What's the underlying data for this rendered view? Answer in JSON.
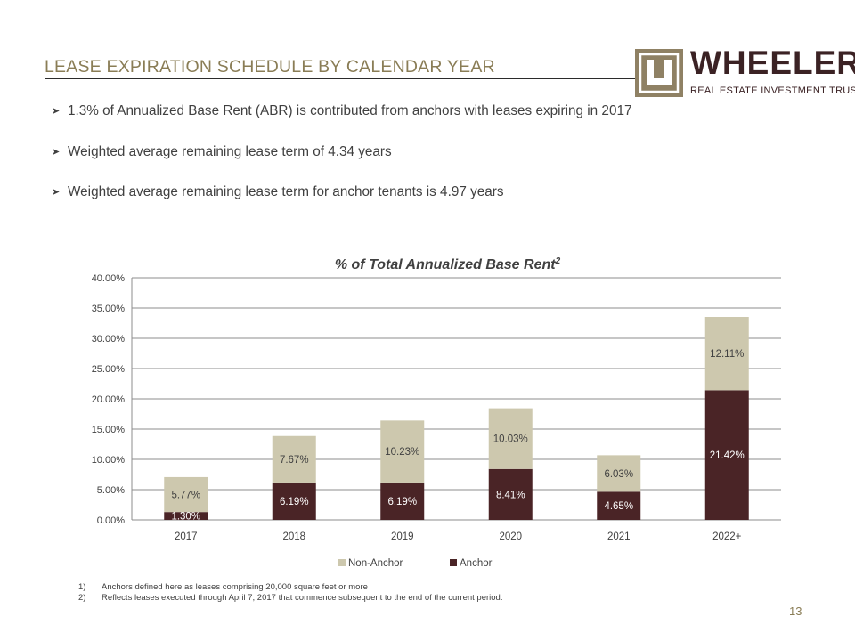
{
  "header": {
    "title": "LEASE EXPIRATION SCHEDULE BY CALENDAR YEAR"
  },
  "logo": {
    "wordmark": "WHEELER",
    "tagline": "REAL ESTATE INVESTMENT TRUST",
    "mark_color": "#8f8164",
    "text_color": "#3b2224"
  },
  "bullets": [
    "1.3% of Annualized Base Rent (ABR) is contributed from anchors with leases expiring in 2017",
    "Weighted average remaining lease term of 4.34 years",
    "Weighted average remaining lease term for anchor tenants is 4.97 years"
  ],
  "chart_data": {
    "type": "bar",
    "stacked": true,
    "title": "% of Total Annualized Base Rent",
    "title_superscript": "2",
    "categories": [
      "2017",
      "2018",
      "2019",
      "2020",
      "2021",
      "2022+"
    ],
    "series": [
      {
        "name": "Anchor",
        "color": "#4a2426",
        "values": [
          1.3,
          6.19,
          6.19,
          8.41,
          4.65,
          21.42
        ],
        "labels": [
          "1.30%",
          "6.19%",
          "6.19%",
          "8.41%",
          "4.65%",
          "21.42%"
        ]
      },
      {
        "name": "Non-Anchor",
        "color": "#cdc8ae",
        "values": [
          5.77,
          7.67,
          10.23,
          10.03,
          6.03,
          12.11
        ],
        "labels": [
          "5.77%",
          "7.67%",
          "10.23%",
          "10.03%",
          "6.03%",
          "12.11%"
        ]
      }
    ],
    "y_ticks": [
      0,
      5,
      10,
      15,
      20,
      25,
      30,
      35,
      40
    ],
    "y_tick_labels": [
      "0.00%",
      "5.00%",
      "10.00%",
      "15.00%",
      "20.00%",
      "25.00%",
      "30.00%",
      "35.00%",
      "40.00%"
    ],
    "ylim": [
      0,
      40
    ],
    "xlabel": "",
    "ylabel": "",
    "grid": true,
    "legend": {
      "position": "bottom",
      "order": [
        "Non-Anchor",
        "Anchor"
      ]
    }
  },
  "footnotes": [
    {
      "num": "1)",
      "text": "Anchors defined here as leases comprising 20,000 square feet or more"
    },
    {
      "num": "2)",
      "text": "Reflects leases executed through April 7, 2017 that commence subsequent to the end of the current period."
    }
  ],
  "page_number": "13"
}
